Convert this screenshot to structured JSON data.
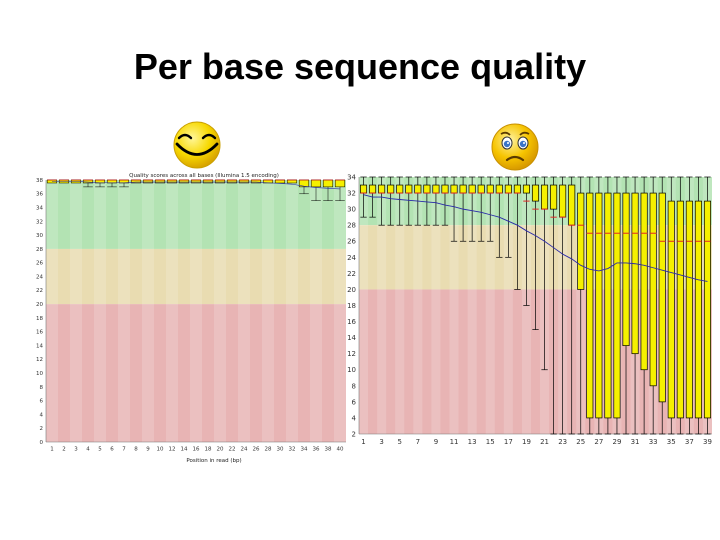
{
  "slide": {
    "title": "Per base sequence quality"
  },
  "icons": {
    "good": "smiley-face-icon",
    "bad": "sad-face-icon"
  },
  "colors": {
    "good_zone": "#b3e3b3",
    "ok_zone": "#e9dcb1",
    "poor_zone": "#e8b4b4",
    "box": "#f5f000",
    "median": "#e22424",
    "mean_line": "#2a2aa8"
  },
  "chart_data": [
    {
      "type": "box",
      "title": "Quality scores across all bases (Illumina 1.5 encoding)",
      "xlabel": "Position in read (bp)",
      "ylabel": "",
      "ylim": [
        0,
        38
      ],
      "y_ticks": [
        0,
        2,
        4,
        6,
        8,
        10,
        12,
        14,
        16,
        18,
        20,
        22,
        24,
        26,
        28,
        30,
        32,
        34,
        36,
        38
      ],
      "x_ticks": [
        "1",
        "2",
        "3",
        "4",
        "5",
        "6",
        "7",
        "8",
        "9",
        "10",
        "12",
        "14",
        "16",
        "18",
        "20",
        "22",
        "24",
        "26",
        "28",
        "30",
        "32",
        "34",
        "36",
        "38",
        "40"
      ],
      "zones": {
        "poor": [
          0,
          20
        ],
        "ok": [
          20,
          28
        ],
        "good": [
          28,
          38
        ]
      },
      "positions": [
        "1",
        "2",
        "3",
        "4",
        "5",
        "6",
        "7",
        "8",
        "9",
        "10",
        "11-12",
        "13-14",
        "15-16",
        "17-18",
        "19-20",
        "21-22",
        "23-24",
        "25-26",
        "27-28",
        "29-30",
        "31-32",
        "33-34",
        "35-36",
        "37-38",
        "39-40"
      ],
      "q1": [
        38,
        38,
        38,
        38,
        38,
        38,
        38,
        38,
        38,
        38,
        38,
        38,
        38,
        38,
        38,
        38,
        38,
        38,
        38,
        38,
        38,
        37,
        37,
        37,
        37
      ],
      "median": [
        38,
        38,
        38,
        38,
        38,
        38,
        38,
        38,
        38,
        38,
        38,
        38,
        38,
        38,
        38,
        38,
        38,
        38,
        38,
        38,
        38,
        38,
        38,
        38,
        38
      ],
      "q3": [
        38,
        38,
        38,
        38,
        38,
        38,
        38,
        38,
        38,
        38,
        38,
        38,
        38,
        38,
        38,
        38,
        38,
        38,
        38,
        38,
        38,
        38,
        38,
        38,
        38
      ],
      "lower_whisker": [
        38,
        38,
        38,
        37,
        37,
        37,
        37,
        38,
        38,
        38,
        38,
        38,
        38,
        38,
        38,
        38,
        38,
        38,
        38,
        38,
        38,
        36,
        35,
        35,
        35
      ],
      "upper_whisker": [
        38,
        38,
        38,
        38,
        38,
        38,
        38,
        38,
        38,
        38,
        38,
        38,
        38,
        38,
        38,
        38,
        38,
        38,
        38,
        38,
        38,
        38,
        38,
        38,
        38
      ],
      "mean": [
        37.8,
        37.8,
        37.8,
        37.7,
        37.6,
        37.6,
        37.6,
        37.7,
        37.7,
        37.7,
        37.7,
        37.7,
        37.7,
        37.7,
        37.7,
        37.7,
        37.7,
        37.7,
        37.6,
        37.5,
        37.4,
        37.1,
        36.9,
        36.8,
        36.7
      ]
    },
    {
      "type": "box",
      "title": "",
      "xlabel": "",
      "ylabel": "",
      "ylim": [
        2,
        34
      ],
      "y_ticks": [
        2,
        4,
        6,
        8,
        10,
        12,
        14,
        16,
        18,
        20,
        22,
        24,
        26,
        28,
        30,
        32,
        34
      ],
      "y_tick_labels": [
        "2",
        "4",
        "6",
        "8",
        "10",
        "12",
        "14",
        "16",
        "18",
        "20",
        "22",
        "24",
        "26",
        "28",
        "30",
        "32",
        "34"
      ],
      "x_ticks": [
        "1",
        "3",
        "5",
        "7",
        "9",
        "11",
        "13",
        "15",
        "17",
        "19",
        "21",
        "23",
        "25",
        "27",
        "29",
        "31",
        "33",
        "35",
        "37",
        "39"
      ],
      "zones": {
        "poor": [
          2,
          20
        ],
        "ok": [
          20,
          28
        ],
        "good": [
          28,
          34
        ]
      },
      "positions": [
        "1",
        "2",
        "3",
        "4",
        "5",
        "6",
        "7",
        "8",
        "9",
        "10",
        "11",
        "12",
        "13",
        "14",
        "15",
        "16",
        "17",
        "19",
        "20",
        "21",
        "22",
        "23",
        "24",
        "25",
        "26",
        "27",
        "28",
        "29",
        "30",
        "31",
        "32",
        "33",
        "34",
        "35",
        "36",
        "37",
        "38",
        "39",
        "40"
      ],
      "q1": [
        32,
        32,
        32,
        32,
        32,
        32,
        32,
        32,
        32,
        32,
        32,
        32,
        32,
        32,
        32,
        32,
        32,
        32,
        32,
        31,
        30,
        30,
        29,
        28,
        20,
        4,
        4,
        4,
        4,
        13,
        12,
        10,
        8,
        6,
        4,
        4,
        4,
        4,
        4
      ],
      "median": [
        32,
        32,
        32,
        32,
        32,
        32,
        32,
        32,
        32,
        32,
        32,
        32,
        32,
        32,
        32,
        32,
        32,
        32,
        31,
        30,
        30,
        29,
        29,
        28,
        28,
        27,
        27,
        27,
        27,
        27,
        27,
        27,
        27,
        26,
        26,
        26,
        26,
        26,
        26
      ],
      "q3": [
        33,
        33,
        33,
        33,
        33,
        33,
        33,
        33,
        33,
        33,
        33,
        33,
        33,
        33,
        33,
        33,
        33,
        33,
        33,
        33,
        33,
        33,
        33,
        33,
        32,
        32,
        32,
        32,
        32,
        32,
        32,
        32,
        32,
        32,
        31,
        31,
        31,
        31,
        31
      ],
      "lower_whisker": [
        29,
        29,
        28,
        28,
        28,
        28,
        28,
        28,
        28,
        28,
        26,
        26,
        26,
        26,
        26,
        24,
        24,
        20,
        18,
        15,
        10,
        2,
        2,
        2,
        2,
        2,
        2,
        2,
        2,
        2,
        2,
        2,
        2,
        2,
        2,
        2,
        2,
        2,
        2
      ],
      "upper_whisker": [
        34,
        34,
        34,
        34,
        34,
        34,
        34,
        34,
        34,
        34,
        34,
        34,
        34,
        34,
        34,
        34,
        34,
        34,
        34,
        34,
        34,
        34,
        34,
        34,
        34,
        34,
        34,
        34,
        34,
        34,
        34,
        34,
        34,
        34,
        34,
        34,
        34,
        34,
        34
      ],
      "mean": [
        31.8,
        31.5,
        31.5,
        31.3,
        31.2,
        31.1,
        31.0,
        30.9,
        30.8,
        30.5,
        30.3,
        30.0,
        29.8,
        29.6,
        29.3,
        29.0,
        28.5,
        28.0,
        27.3,
        26.7,
        26.0,
        25.2,
        24.4,
        23.8,
        23.0,
        22.5,
        22.3,
        22.6,
        23.3,
        23.3,
        23.2,
        23.0,
        22.7,
        22.4,
        22.1,
        21.8,
        21.5,
        21.2,
        21.0
      ]
    }
  ]
}
